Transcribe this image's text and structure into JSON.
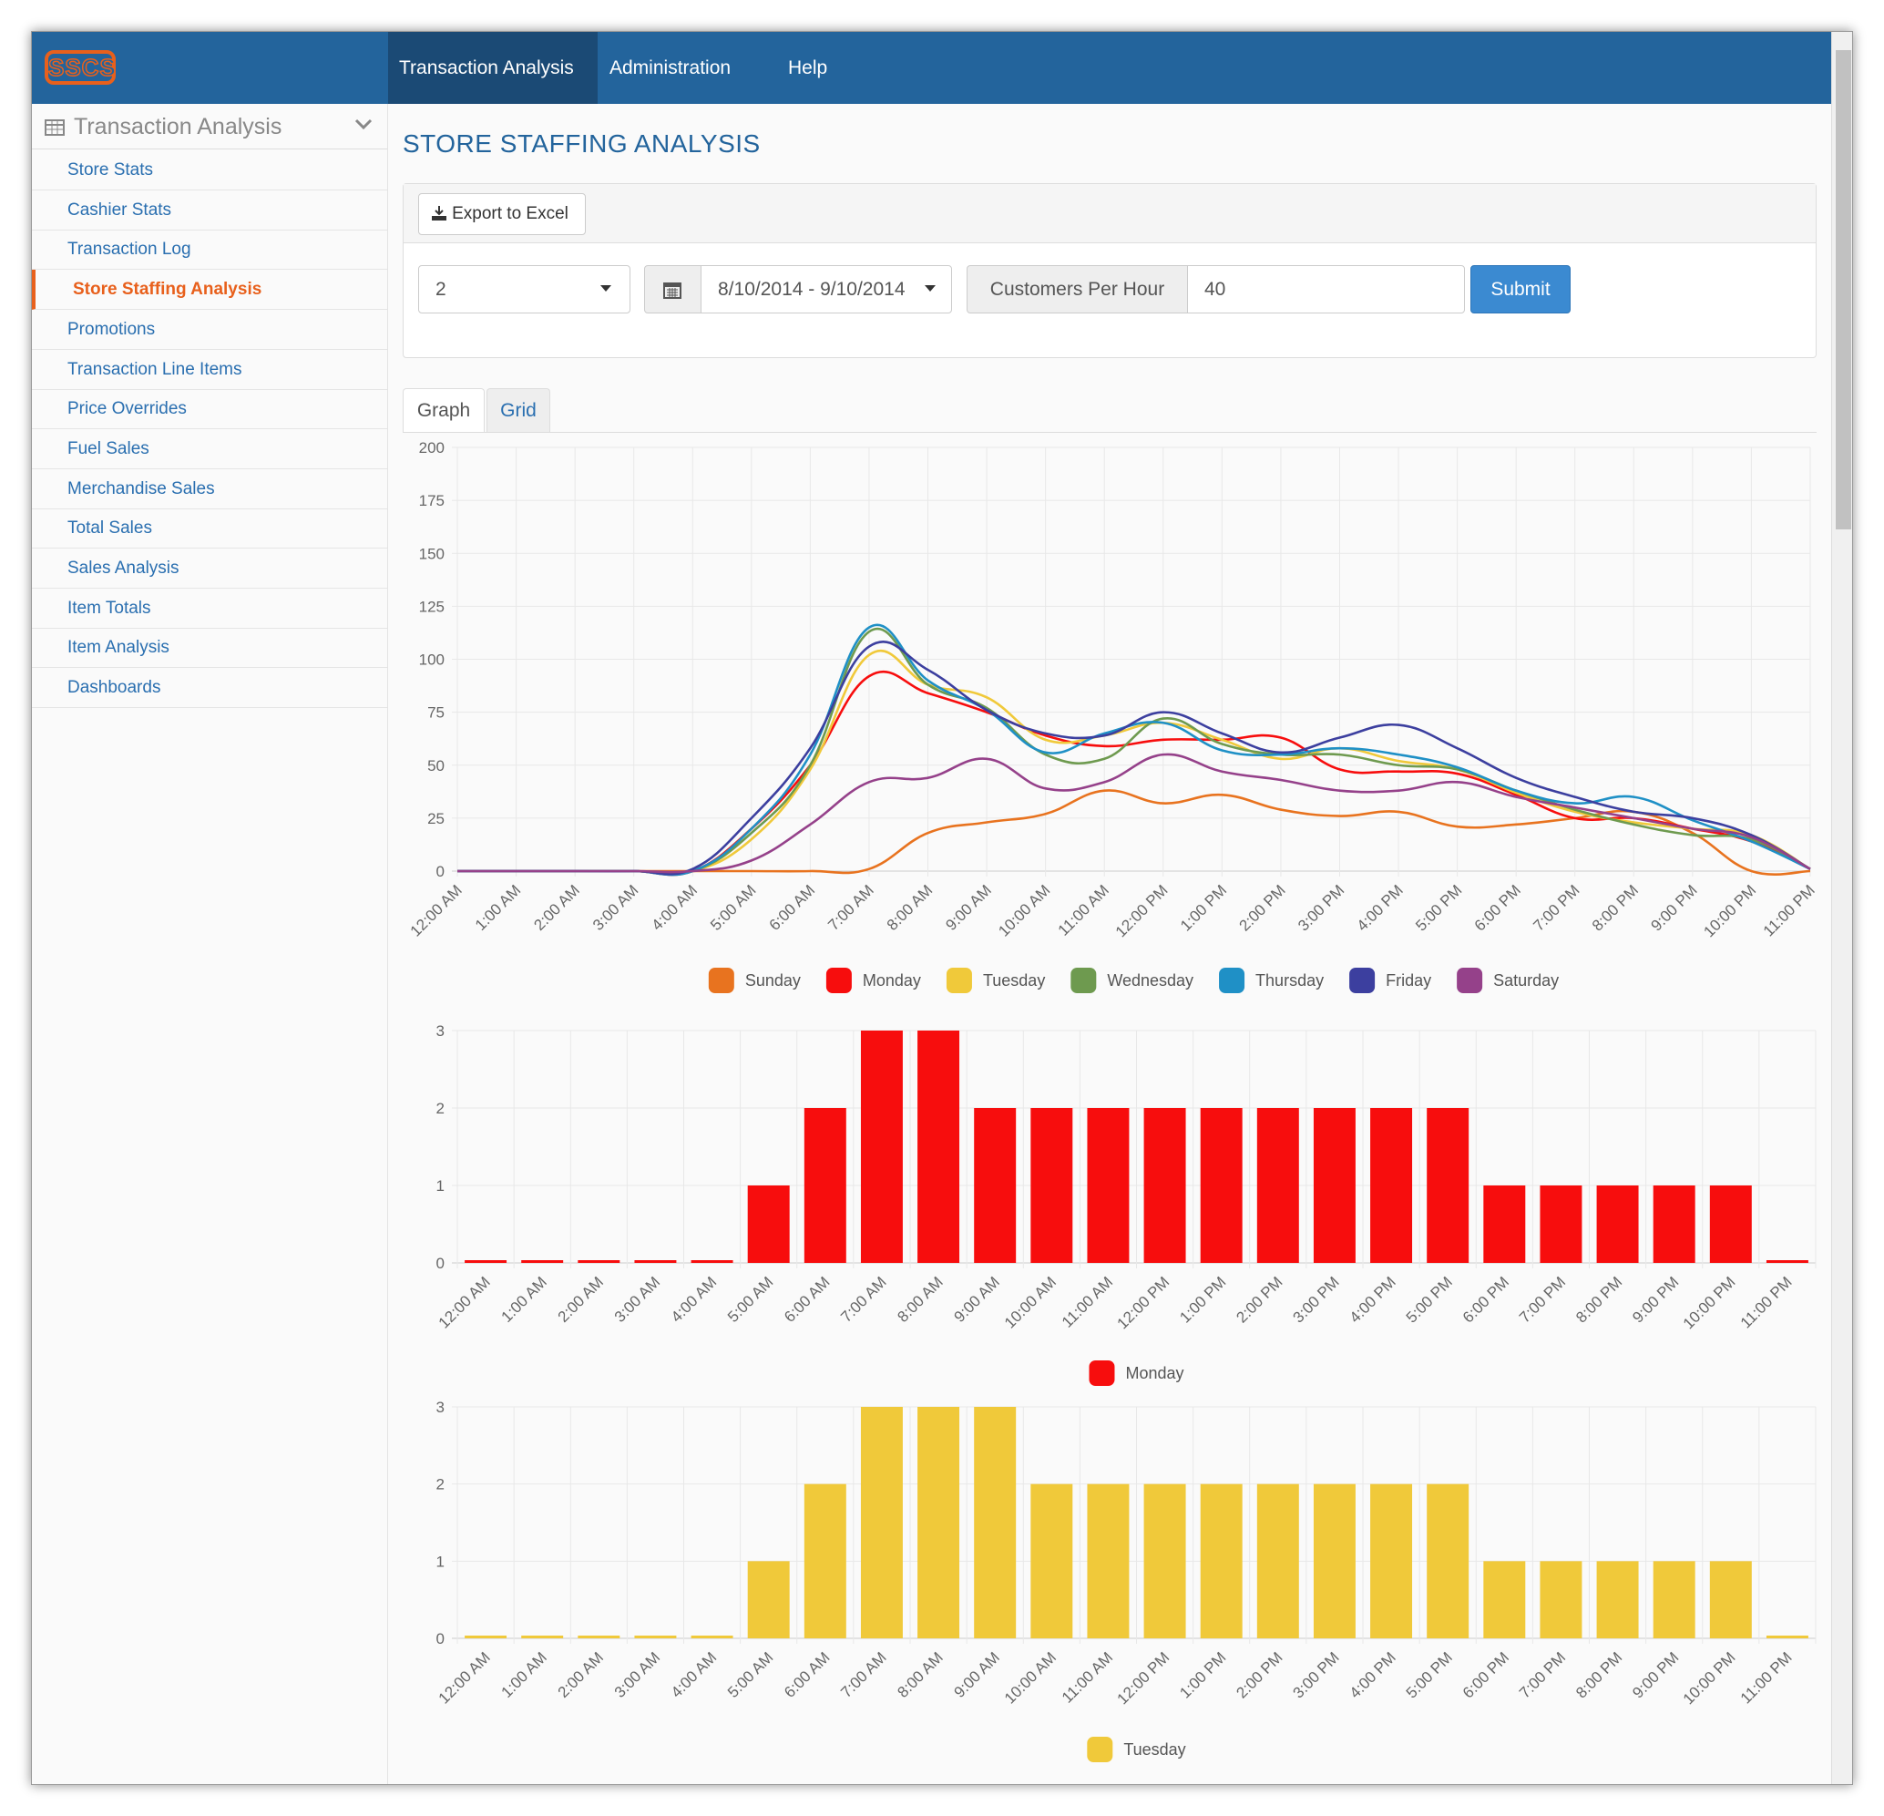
{
  "nav": {
    "logo": "SSCS",
    "items": [
      "Transaction Analysis",
      "Administration",
      "Help"
    ]
  },
  "sidebar": {
    "title": "Transaction Analysis",
    "items": [
      "Store Stats",
      "Cashier Stats",
      "Transaction Log",
      "Store Staffing Analysis",
      "Promotions",
      "Transaction Line Items",
      "Price Overrides",
      "Fuel Sales",
      "Merchandise Sales",
      "Total Sales",
      "Sales Analysis",
      "Item Totals",
      "Item Analysis",
      "Dashboards"
    ]
  },
  "page": {
    "title": "STORE STAFFING ANALYSIS",
    "export_button": "Export to Excel",
    "select_value": "2",
    "date_range": "8/10/2014 - 9/10/2014",
    "customers_label": "Customers Per Hour",
    "customers_value": "40",
    "submit": "Submit",
    "tabs": [
      "Graph",
      "Grid"
    ]
  },
  "chart_data": [
    {
      "type": "line",
      "categories": [
        "12:00 AM",
        "1:00 AM",
        "2:00 AM",
        "3:00 AM",
        "4:00 AM",
        "5:00 AM",
        "6:00 AM",
        "7:00 AM",
        "8:00 AM",
        "9:00 AM",
        "10:00 AM",
        "11:00 AM",
        "12:00 PM",
        "1:00 PM",
        "2:00 PM",
        "3:00 PM",
        "4:00 PM",
        "5:00 PM",
        "6:00 PM",
        "7:00 PM",
        "8:00 PM",
        "9:00 PM",
        "10:00 PM",
        "11:00 PM"
      ],
      "series": [
        {
          "name": "Sunday",
          "color": "#e8731f",
          "values": [
            0,
            0,
            0,
            0,
            0,
            0,
            0,
            1,
            18,
            23,
            27,
            38,
            32,
            36,
            29,
            26,
            28,
            21,
            22,
            25,
            28,
            18,
            0,
            0
          ]
        },
        {
          "name": "Monday",
          "color": "#f70d0d",
          "values": [
            0,
            0,
            0,
            0,
            0,
            20,
            50,
            92,
            84,
            75,
            64,
            59,
            62,
            62,
            63,
            48,
            47,
            46,
            36,
            25,
            25,
            20,
            14,
            1
          ]
        },
        {
          "name": "Tuesday",
          "color": "#f0c93a",
          "values": [
            0,
            0,
            0,
            0,
            0,
            15,
            48,
            102,
            88,
            82,
            62,
            64,
            70,
            62,
            53,
            58,
            52,
            48,
            37,
            28,
            23,
            20,
            17,
            1
          ]
        },
        {
          "name": "Wednesday",
          "color": "#6e9a4f",
          "values": [
            0,
            0,
            0,
            0,
            0,
            18,
            50,
            113,
            88,
            77,
            55,
            53,
            72,
            60,
            55,
            55,
            50,
            48,
            38,
            29,
            22,
            17,
            15,
            1
          ]
        },
        {
          "name": "Thursday",
          "color": "#1f90c6",
          "values": [
            0,
            0,
            0,
            0,
            0,
            20,
            55,
            115,
            90,
            76,
            56,
            65,
            70,
            57,
            55,
            58,
            55,
            49,
            38,
            32,
            35,
            24,
            14,
            1
          ]
        },
        {
          "name": "Friday",
          "color": "#3c3f9f",
          "values": [
            0,
            0,
            0,
            0,
            1,
            25,
            58,
            106,
            95,
            76,
            65,
            64,
            75,
            65,
            56,
            63,
            69,
            58,
            44,
            35,
            28,
            25,
            17,
            1
          ]
        },
        {
          "name": "Saturday",
          "color": "#95418a",
          "values": [
            0,
            0,
            0,
            0,
            0,
            5,
            22,
            42,
            44,
            53,
            39,
            42,
            55,
            47,
            43,
            38,
            38,
            42,
            35,
            30,
            25,
            20,
            16,
            1
          ]
        }
      ],
      "ylim": [
        0,
        200
      ],
      "yticks": [
        0,
        25,
        50,
        75,
        100,
        125,
        150,
        175,
        200
      ],
      "grid": true,
      "legend": "bottom"
    },
    {
      "type": "bar",
      "categories": [
        "12:00 AM",
        "1:00 AM",
        "2:00 AM",
        "3:00 AM",
        "4:00 AM",
        "5:00 AM",
        "6:00 AM",
        "7:00 AM",
        "8:00 AM",
        "9:00 AM",
        "10:00 AM",
        "11:00 AM",
        "12:00 PM",
        "1:00 PM",
        "2:00 PM",
        "3:00 PM",
        "4:00 PM",
        "5:00 PM",
        "6:00 PM",
        "7:00 PM",
        "8:00 PM",
        "9:00 PM",
        "10:00 PM",
        "11:00 PM"
      ],
      "series": [
        {
          "name": "Monday",
          "color": "#f70d0d",
          "values": [
            0,
            0,
            0,
            0,
            0,
            1,
            2,
            3,
            3,
            2,
            2,
            2,
            2,
            2,
            2,
            2,
            2,
            2,
            1,
            1,
            1,
            1,
            1,
            0
          ]
        }
      ],
      "ylim": [
        0,
        3
      ],
      "yticks": [
        0,
        1,
        2,
        3
      ],
      "grid": true,
      "legend": "bottom"
    },
    {
      "type": "bar",
      "categories": [
        "12:00 AM",
        "1:00 AM",
        "2:00 AM",
        "3:00 AM",
        "4:00 AM",
        "5:00 AM",
        "6:00 AM",
        "7:00 AM",
        "8:00 AM",
        "9:00 AM",
        "10:00 AM",
        "11:00 AM",
        "12:00 PM",
        "1:00 PM",
        "2:00 PM",
        "3:00 PM",
        "4:00 PM",
        "5:00 PM",
        "6:00 PM",
        "7:00 PM",
        "8:00 PM",
        "9:00 PM",
        "10:00 PM",
        "11:00 PM"
      ],
      "series": [
        {
          "name": "Tuesday",
          "color": "#f0c93a",
          "values": [
            0,
            0,
            0,
            0,
            0,
            1,
            2,
            3,
            3,
            3,
            2,
            2,
            2,
            2,
            2,
            2,
            2,
            2,
            1,
            1,
            1,
            1,
            1,
            0
          ]
        }
      ],
      "ylim": [
        0,
        3
      ],
      "yticks": [
        0,
        1,
        2,
        3
      ],
      "grid": true,
      "legend": "bottom"
    }
  ]
}
